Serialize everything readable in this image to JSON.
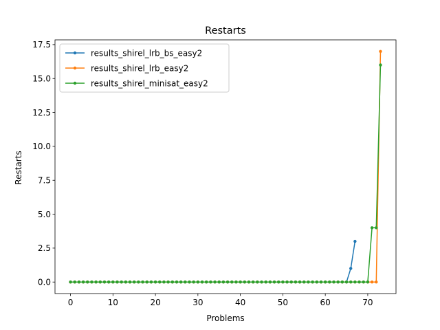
{
  "chart_data": {
    "type": "line",
    "title": "Restarts",
    "xlabel": "Problems",
    "ylabel": "Restarts",
    "xlim": [
      -3.65,
      76.65
    ],
    "ylim": [
      -0.85,
      17.85
    ],
    "xticks": [
      0,
      10,
      20,
      30,
      40,
      50,
      60,
      70
    ],
    "xtick_labels": [
      "0",
      "10",
      "20",
      "30",
      "40",
      "50",
      "60",
      "70"
    ],
    "yticks": [
      0,
      2.5,
      5,
      7.5,
      10,
      12.5,
      15,
      17.5
    ],
    "ytick_labels": [
      "0.0",
      "2.5",
      "5.0",
      "7.5",
      "10.0",
      "12.5",
      "15.0",
      "17.5"
    ],
    "grid": false,
    "legend_position": "top-left",
    "series": [
      {
        "name": "results_shirel_lrb_bs_easy2",
        "color": "#1f77b4",
        "x": [
          0,
          1,
          2,
          3,
          4,
          5,
          6,
          7,
          8,
          9,
          10,
          11,
          12,
          13,
          14,
          15,
          16,
          17,
          18,
          19,
          20,
          21,
          22,
          23,
          24,
          25,
          26,
          27,
          28,
          29,
          30,
          31,
          32,
          33,
          34,
          35,
          36,
          37,
          38,
          39,
          40,
          41,
          42,
          43,
          44,
          45,
          46,
          47,
          48,
          49,
          50,
          51,
          52,
          53,
          54,
          55,
          56,
          57,
          58,
          59,
          60,
          61,
          62,
          63,
          64,
          65,
          66,
          67
        ],
        "values": [
          0,
          0,
          0,
          0,
          0,
          0,
          0,
          0,
          0,
          0,
          0,
          0,
          0,
          0,
          0,
          0,
          0,
          0,
          0,
          0,
          0,
          0,
          0,
          0,
          0,
          0,
          0,
          0,
          0,
          0,
          0,
          0,
          0,
          0,
          0,
          0,
          0,
          0,
          0,
          0,
          0,
          0,
          0,
          0,
          0,
          0,
          0,
          0,
          0,
          0,
          0,
          0,
          0,
          0,
          0,
          0,
          0,
          0,
          0,
          0,
          0,
          0,
          0,
          0,
          0,
          0,
          1,
          3
        ]
      },
      {
        "name": "results_shirel_lrb_easy2",
        "color": "#ff7f0e",
        "x": [
          0,
          1,
          2,
          3,
          4,
          5,
          6,
          7,
          8,
          9,
          10,
          11,
          12,
          13,
          14,
          15,
          16,
          17,
          18,
          19,
          20,
          21,
          22,
          23,
          24,
          25,
          26,
          27,
          28,
          29,
          30,
          31,
          32,
          33,
          34,
          35,
          36,
          37,
          38,
          39,
          40,
          41,
          42,
          43,
          44,
          45,
          46,
          47,
          48,
          49,
          50,
          51,
          52,
          53,
          54,
          55,
          56,
          57,
          58,
          59,
          60,
          61,
          62,
          63,
          64,
          65,
          66,
          67,
          68,
          69,
          70,
          71,
          72,
          73
        ],
        "values": [
          0,
          0,
          0,
          0,
          0,
          0,
          0,
          0,
          0,
          0,
          0,
          0,
          0,
          0,
          0,
          0,
          0,
          0,
          0,
          0,
          0,
          0,
          0,
          0,
          0,
          0,
          0,
          0,
          0,
          0,
          0,
          0,
          0,
          0,
          0,
          0,
          0,
          0,
          0,
          0,
          0,
          0,
          0,
          0,
          0,
          0,
          0,
          0,
          0,
          0,
          0,
          0,
          0,
          0,
          0,
          0,
          0,
          0,
          0,
          0,
          0,
          0,
          0,
          0,
          0,
          0,
          0,
          0,
          0,
          0,
          0,
          0,
          0,
          17
        ]
      },
      {
        "name": "results_shirel_minisat_easy2",
        "color": "#2ca02c",
        "x": [
          0,
          1,
          2,
          3,
          4,
          5,
          6,
          7,
          8,
          9,
          10,
          11,
          12,
          13,
          14,
          15,
          16,
          17,
          18,
          19,
          20,
          21,
          22,
          23,
          24,
          25,
          26,
          27,
          28,
          29,
          30,
          31,
          32,
          33,
          34,
          35,
          36,
          37,
          38,
          39,
          40,
          41,
          42,
          43,
          44,
          45,
          46,
          47,
          48,
          49,
          50,
          51,
          52,
          53,
          54,
          55,
          56,
          57,
          58,
          59,
          60,
          61,
          62,
          63,
          64,
          65,
          66,
          67,
          68,
          69,
          70,
          71,
          72,
          73
        ],
        "values": [
          0,
          0,
          0,
          0,
          0,
          0,
          0,
          0,
          0,
          0,
          0,
          0,
          0,
          0,
          0,
          0,
          0,
          0,
          0,
          0,
          0,
          0,
          0,
          0,
          0,
          0,
          0,
          0,
          0,
          0,
          0,
          0,
          0,
          0,
          0,
          0,
          0,
          0,
          0,
          0,
          0,
          0,
          0,
          0,
          0,
          0,
          0,
          0,
          0,
          0,
          0,
          0,
          0,
          0,
          0,
          0,
          0,
          0,
          0,
          0,
          0,
          0,
          0,
          0,
          0,
          0,
          0,
          0,
          0,
          0,
          0,
          4,
          4,
          16
        ]
      }
    ]
  }
}
